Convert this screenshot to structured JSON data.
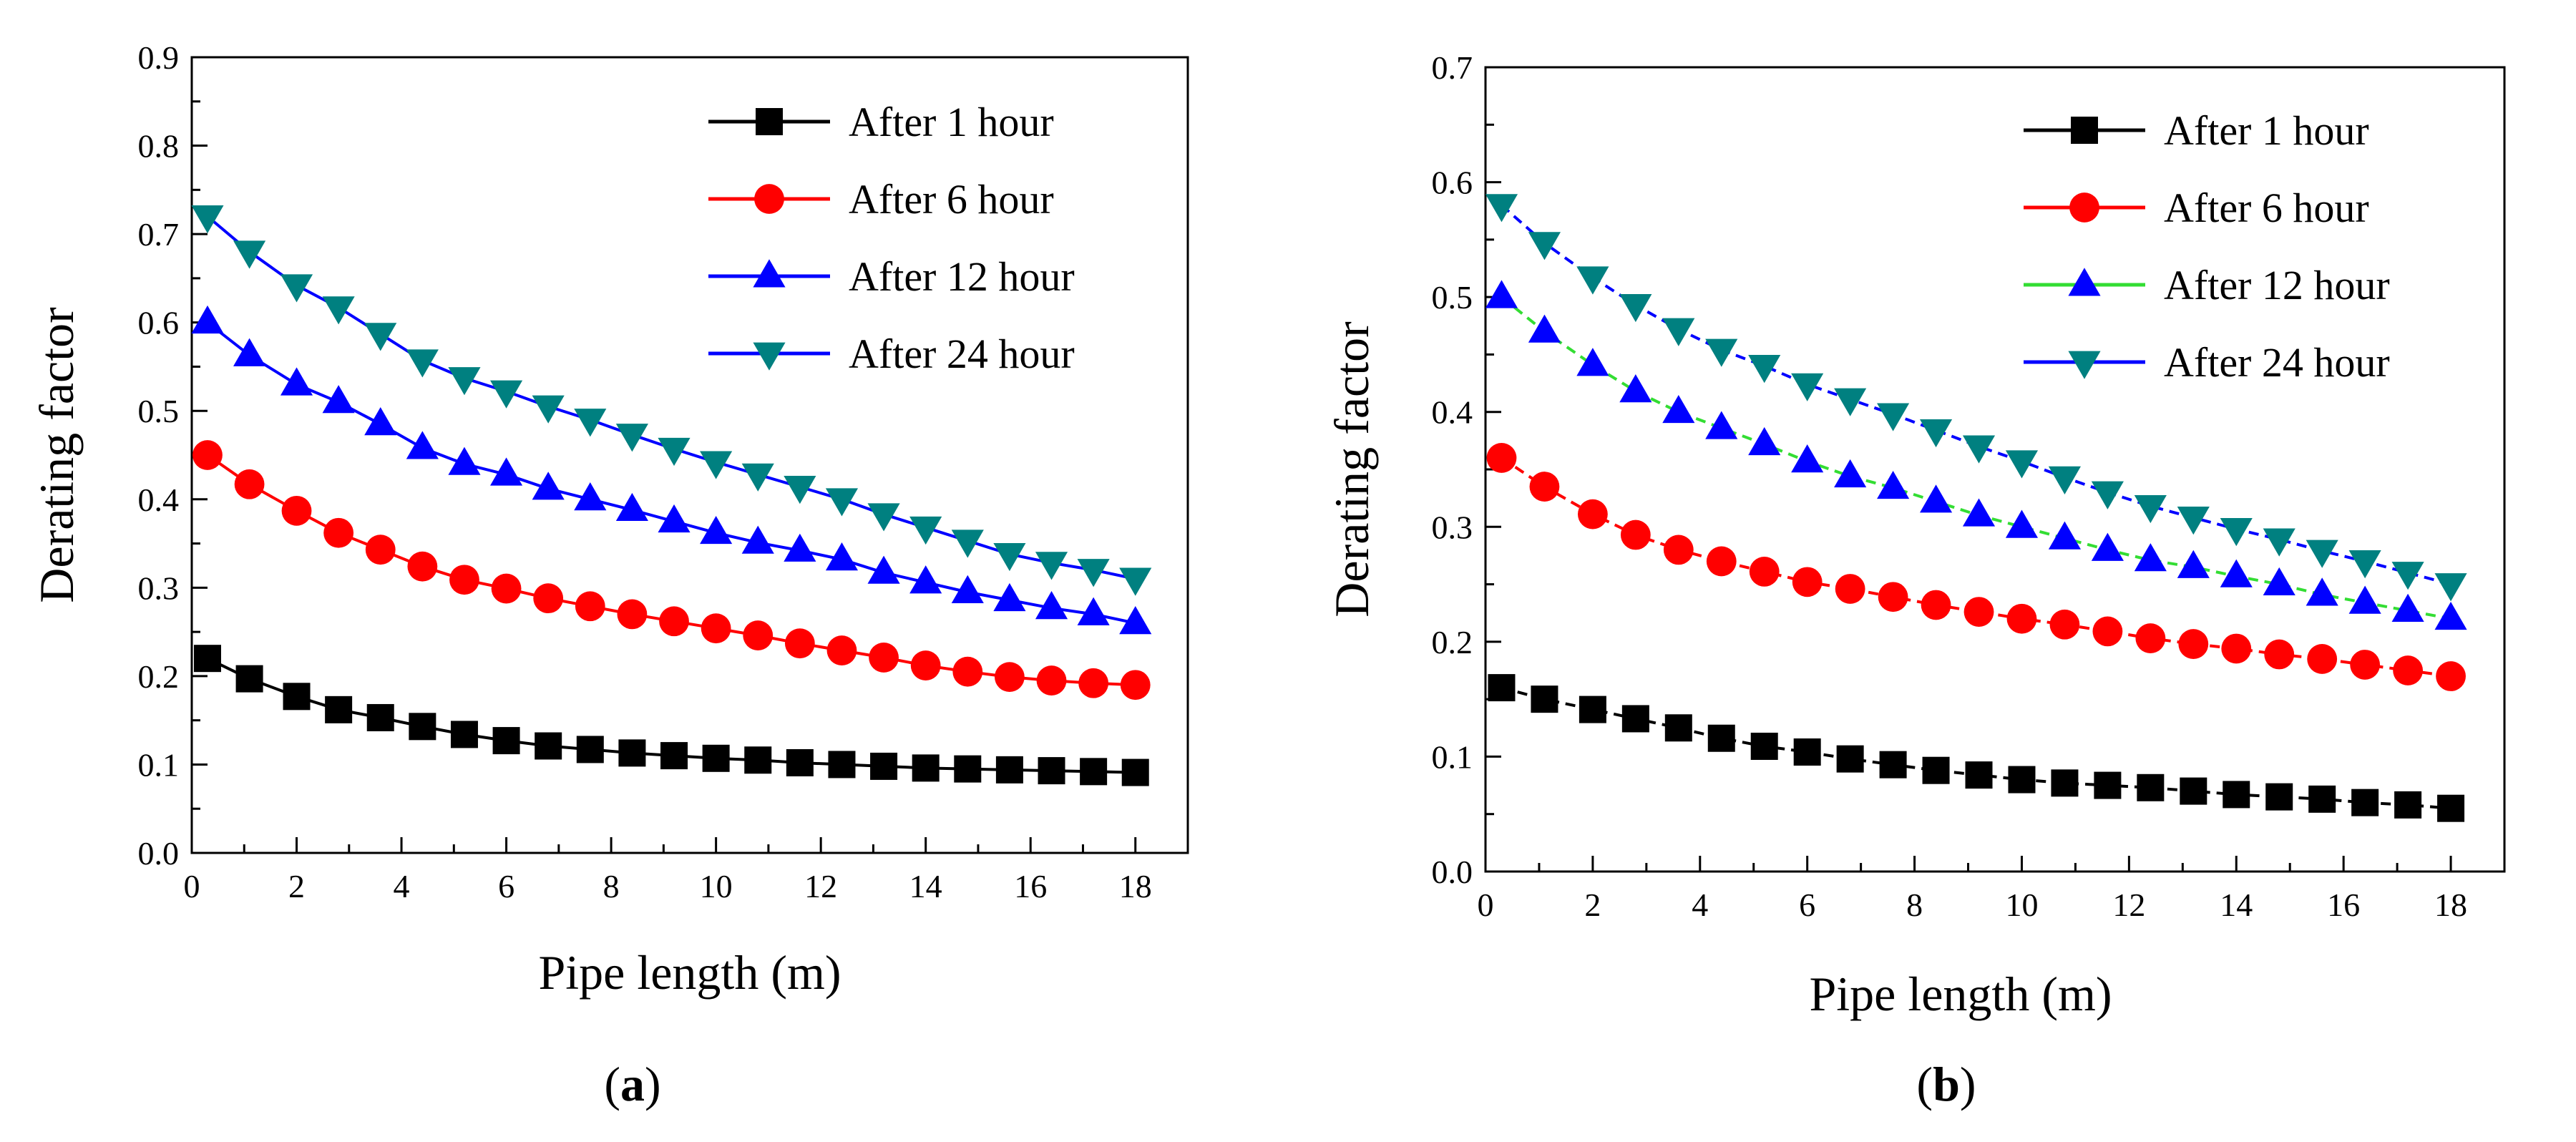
{
  "chart_data": [
    {
      "type": "line",
      "panel_label": "a",
      "xlabel": "Pipe length (m)",
      "ylabel": "Derating factor",
      "xlim": [
        0,
        19
      ],
      "ylim": [
        0,
        0.9
      ],
      "xticks": [
        0,
        2,
        4,
        6,
        8,
        10,
        12,
        14,
        16,
        18
      ],
      "yticks": [
        0.0,
        0.1,
        0.2,
        0.3,
        0.4,
        0.5,
        0.6,
        0.7,
        0.8,
        0.9
      ],
      "xtick_labels": [
        "0",
        "2",
        "4",
        "6",
        "8",
        "10",
        "12",
        "14",
        "16",
        "18"
      ],
      "ytick_labels": [
        "0.0",
        "0.1",
        "0.2",
        "0.3",
        "0.4",
        "0.5",
        "0.6",
        "0.7",
        "0.8",
        "0.9"
      ],
      "grid": false,
      "legend_position": "top-right",
      "x": [
        0.3,
        1.1,
        2.0,
        2.8,
        3.6,
        4.4,
        5.2,
        6.0,
        6.8,
        7.6,
        8.4,
        9.2,
        10.0,
        10.8,
        11.6,
        12.4,
        13.2,
        14.0,
        14.8,
        15.6,
        16.4,
        17.2,
        18.0
      ],
      "series": [
        {
          "name": "After 1 hour",
          "marker": "square",
          "color": "#000000",
          "line_color": "#000000",
          "line_style": "solid",
          "values": [
            0.22,
            0.197,
            0.177,
            0.162,
            0.153,
            0.143,
            0.134,
            0.127,
            0.121,
            0.117,
            0.113,
            0.11,
            0.107,
            0.105,
            0.102,
            0.1,
            0.098,
            0.096,
            0.095,
            0.094,
            0.093,
            0.092,
            0.091
          ]
        },
        {
          "name": "After 6 hour",
          "marker": "circle",
          "color": "#ff0000",
          "line_color": "#ff0000",
          "line_style": "solid",
          "values": [
            0.45,
            0.417,
            0.387,
            0.362,
            0.343,
            0.324,
            0.309,
            0.299,
            0.288,
            0.279,
            0.27,
            0.262,
            0.254,
            0.246,
            0.237,
            0.229,
            0.221,
            0.212,
            0.205,
            0.199,
            0.195,
            0.192,
            0.19
          ]
        },
        {
          "name": "After 12 hour",
          "marker": "triangle-up",
          "color": "#0000ff",
          "line_color": "#0000ff",
          "line_style": "solid",
          "values": [
            0.6,
            0.563,
            0.53,
            0.51,
            0.485,
            0.458,
            0.44,
            0.428,
            0.412,
            0.4,
            0.388,
            0.375,
            0.362,
            0.351,
            0.342,
            0.332,
            0.317,
            0.306,
            0.295,
            0.286,
            0.277,
            0.27,
            0.26
          ]
        },
        {
          "name": "After 24 hour",
          "marker": "triangle-down",
          "color": "#008080",
          "line_color": "#0000ff",
          "line_style": "solid",
          "values": [
            0.72,
            0.68,
            0.642,
            0.617,
            0.587,
            0.557,
            0.537,
            0.522,
            0.505,
            0.49,
            0.473,
            0.457,
            0.442,
            0.428,
            0.414,
            0.4,
            0.383,
            0.368,
            0.353,
            0.338,
            0.328,
            0.32,
            0.31
          ]
        }
      ]
    },
    {
      "type": "line",
      "panel_label": "b",
      "xlabel": "Pipe length (m)",
      "ylabel": "Derating factor",
      "xlim": [
        0,
        19
      ],
      "ylim": [
        0,
        0.7
      ],
      "xticks": [
        0,
        2,
        4,
        6,
        8,
        10,
        12,
        14,
        16,
        18
      ],
      "yticks": [
        0.0,
        0.1,
        0.2,
        0.3,
        0.4,
        0.5,
        0.6,
        0.7
      ],
      "xtick_labels": [
        "0",
        "2",
        "4",
        "6",
        "8",
        "10",
        "12",
        "14",
        "16",
        "18"
      ],
      "ytick_labels": [
        "0.0",
        "0.1",
        "0.2",
        "0.3",
        "0.4",
        "0.5",
        "0.6",
        "0.7"
      ],
      "grid": false,
      "legend_position": "top-right",
      "x": [
        0.3,
        1.1,
        2.0,
        2.8,
        3.6,
        4.4,
        5.2,
        6.0,
        6.8,
        7.6,
        8.4,
        9.2,
        10.0,
        10.8,
        11.6,
        12.4,
        13.2,
        14.0,
        14.8,
        15.6,
        16.4,
        17.2,
        18.0
      ],
      "series": [
        {
          "name": "After 1 hour",
          "marker": "square",
          "color": "#000000",
          "line_color": "#000000",
          "line_style": "dashed",
          "values": [
            0.16,
            0.15,
            0.141,
            0.133,
            0.125,
            0.116,
            0.109,
            0.104,
            0.098,
            0.093,
            0.088,
            0.084,
            0.08,
            0.077,
            0.075,
            0.073,
            0.07,
            0.067,
            0.065,
            0.063,
            0.06,
            0.058,
            0.055
          ]
        },
        {
          "name": "After 6 hour",
          "marker": "circle",
          "color": "#ff0000",
          "line_color": "#ff0000",
          "line_style": "dashed",
          "values": [
            0.36,
            0.335,
            0.311,
            0.293,
            0.28,
            0.27,
            0.261,
            0.252,
            0.246,
            0.239,
            0.232,
            0.226,
            0.22,
            0.215,
            0.209,
            0.203,
            0.198,
            0.194,
            0.189,
            0.185,
            0.18,
            0.175,
            0.17
          ]
        },
        {
          "name": "After 12 hour",
          "marker": "triangle-up",
          "color": "#0000ff",
          "line_color": "#33dd33",
          "line_style": "dashed",
          "values": [
            0.5,
            0.47,
            0.441,
            0.418,
            0.4,
            0.386,
            0.372,
            0.357,
            0.344,
            0.334,
            0.322,
            0.31,
            0.3,
            0.29,
            0.28,
            0.271,
            0.265,
            0.257,
            0.25,
            0.241,
            0.234,
            0.227,
            0.22
          ]
        },
        {
          "name": "After 24 hour",
          "marker": "triangle-down",
          "color": "#008080",
          "line_color": "#0000ff",
          "line_style": "dashed",
          "values": [
            0.58,
            0.547,
            0.517,
            0.493,
            0.472,
            0.454,
            0.44,
            0.424,
            0.411,
            0.398,
            0.384,
            0.37,
            0.357,
            0.343,
            0.33,
            0.318,
            0.308,
            0.298,
            0.289,
            0.279,
            0.27,
            0.26,
            0.25
          ]
        }
      ]
    }
  ]
}
